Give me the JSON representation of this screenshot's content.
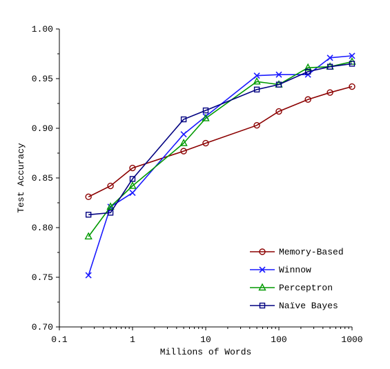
{
  "chart_data": {
    "type": "line",
    "title": "",
    "xlabel": "Millions of Words",
    "ylabel": "Test Accuracy",
    "xscale": "log",
    "xlim": [
      0.1,
      1000
    ],
    "ylim": [
      0.7,
      1.0
    ],
    "xticks": [
      "0.1",
      "1",
      "10",
      "100",
      "1000"
    ],
    "yticks": [
      "0.70",
      "0.75",
      "0.80",
      "0.85",
      "0.90",
      "0.95",
      "1.00"
    ],
    "grid": false,
    "legend_position": "bottom-right",
    "series": [
      {
        "name": "Memory-Based",
        "color": "#8b0000",
        "marker": "circle",
        "x": [
          0.25,
          0.5,
          1,
          5,
          10,
          50,
          100,
          250,
          500,
          1000
        ],
        "y": [
          0.831,
          0.842,
          0.86,
          0.877,
          0.885,
          0.903,
          0.917,
          0.929,
          0.936,
          0.942
        ]
      },
      {
        "name": "Winnow",
        "color": "#1a1aff",
        "marker": "x",
        "x": [
          0.25,
          0.5,
          1,
          5,
          10,
          50,
          100,
          250,
          500,
          1000
        ],
        "y": [
          0.752,
          0.821,
          0.835,
          0.894,
          0.912,
          0.953,
          0.954,
          0.954,
          0.971,
          0.973
        ]
      },
      {
        "name": "Perceptron",
        "color": "#009900",
        "marker": "triangle",
        "x": [
          0.25,
          0.5,
          1,
          5,
          10,
          50,
          100,
          250,
          500,
          1000
        ],
        "y": [
          0.791,
          0.821,
          0.842,
          0.885,
          0.91,
          0.947,
          0.944,
          0.961,
          0.962,
          0.967
        ]
      },
      {
        "name": "Naïve Bayes",
        "color": "#000080",
        "marker": "square",
        "x": [
          0.25,
          0.5,
          1,
          5,
          10,
          50,
          100,
          250,
          500,
          1000
        ],
        "y": [
          0.813,
          0.815,
          0.849,
          0.909,
          0.918,
          0.939,
          0.944,
          0.957,
          0.962,
          0.965
        ]
      }
    ]
  }
}
